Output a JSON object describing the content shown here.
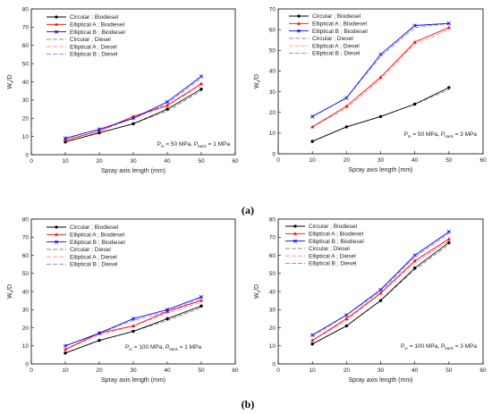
{
  "panel_labels": [
    "(a)",
    "(b)"
  ],
  "chart_data": [
    {
      "type": "line",
      "panel": "a",
      "title": "",
      "xlabel": "Spray axis length (mm)",
      "ylabel": "W",
      "ylabel_sub": "v",
      "ylabel_suffix": "/D",
      "xlim": [
        0,
        60
      ],
      "ylim": [
        0,
        80
      ],
      "xticks": [
        0,
        10,
        20,
        30,
        40,
        50,
        60
      ],
      "yticks": [
        0,
        10,
        20,
        30,
        40,
        50,
        60,
        70,
        80
      ],
      "grid": false,
      "legend_position": "top-left",
      "annotation": {
        "p1": "P",
        "s1": "in",
        "p2": " = 50 MPa, P",
        "s2": "back",
        "p3": " = 1 MPa"
      },
      "x": [
        10,
        20,
        30,
        40,
        50
      ],
      "series": [
        {
          "name": "Circular ; Biodiesel",
          "color": "#000000",
          "dashed": false,
          "marker": "circle",
          "values": [
            7,
            12,
            17,
            25,
            36
          ]
        },
        {
          "name": "Elliptical A ; Biodiesel",
          "color": "#ff0000",
          "dashed": false,
          "marker": "triangle",
          "values": [
            8,
            13,
            21,
            27,
            39
          ]
        },
        {
          "name": "Elliptical B ; Biodiesel",
          "color": "#0000ff",
          "dashed": false,
          "marker": "x",
          "values": [
            9,
            14,
            20,
            29,
            43
          ]
        },
        {
          "name": "Circular ; Diesel",
          "color": "#808080",
          "dashed": true,
          "marker": "none",
          "values": [
            7,
            12,
            17,
            24,
            35
          ]
        },
        {
          "name": "Elliptical A ; Diesel",
          "color": "#ff8c8c",
          "dashed": true,
          "marker": "none",
          "values": [
            8,
            13,
            20,
            27,
            38
          ]
        },
        {
          "name": "Elliptical B ; Diesel",
          "color": "#8c8cff",
          "dashed": true,
          "marker": "none",
          "values": [
            9,
            14,
            20,
            28,
            42
          ]
        }
      ]
    },
    {
      "type": "line",
      "panel": "a",
      "title": "",
      "xlabel": "Spray axis length (mm)",
      "ylabel": "W",
      "ylabel_sub": "v",
      "ylabel_suffix": "/D",
      "xlim": [
        0,
        60
      ],
      "ylim": [
        0,
        70
      ],
      "xticks": [
        0,
        10,
        20,
        30,
        40,
        50,
        60
      ],
      "yticks": [
        0,
        10,
        20,
        30,
        40,
        50,
        60,
        70
      ],
      "grid": false,
      "legend_position": "top-left",
      "annotation": {
        "p1": "P",
        "s1": "in",
        "p2": " = 50 MPa, P",
        "s2": "back",
        "p3": " = 3 MPa"
      },
      "x": [
        10,
        20,
        30,
        40,
        50
      ],
      "series": [
        {
          "name": "Circular ; Biodiesel",
          "color": "#000000",
          "dashed": false,
          "marker": "circle",
          "values": [
            6,
            13,
            18,
            24,
            32
          ]
        },
        {
          "name": "Elliptical A ; Biodiesel",
          "color": "#ff0000",
          "dashed": false,
          "marker": "triangle",
          "values": [
            13,
            23,
            37,
            54,
            61
          ]
        },
        {
          "name": "Elliptical B ; Biodiesel",
          "color": "#0000ff",
          "dashed": false,
          "marker": "x",
          "values": [
            18,
            27,
            48,
            62,
            63
          ]
        },
        {
          "name": "Circular ; Diesel",
          "color": "#808080",
          "dashed": true,
          "marker": "none",
          "values": [
            6,
            13,
            18,
            24,
            31
          ]
        },
        {
          "name": "Elliptical A ; Diesel",
          "color": "#ff8c8c",
          "dashed": true,
          "marker": "none",
          "values": [
            13,
            22,
            36,
            53,
            60
          ]
        },
        {
          "name": "Elliptical B ; Diesel",
          "color": "#8c8cff",
          "dashed": true,
          "marker": "none",
          "values": [
            18,
            27,
            47,
            61,
            63
          ]
        }
      ]
    },
    {
      "type": "line",
      "panel": "b",
      "title": "",
      "xlabel": "Spray axis length (mm)",
      "ylabel": "W",
      "ylabel_sub": "v",
      "ylabel_suffix": "/D",
      "xlim": [
        0,
        60
      ],
      "ylim": [
        0,
        80
      ],
      "xticks": [
        0,
        10,
        20,
        30,
        40,
        50,
        60
      ],
      "yticks": [
        0,
        10,
        20,
        30,
        40,
        50,
        60,
        70,
        80
      ],
      "grid": false,
      "legend_position": "top-left",
      "annotation": {
        "p1": "P",
        "s1": "in",
        "p2": " = 100 MPa, P",
        "s2": "back",
        "p3": " = 1 MPa"
      },
      "x": [
        10,
        20,
        30,
        40,
        50
      ],
      "series": [
        {
          "name": "Circular ; Biodiesel",
          "color": "#000000",
          "dashed": false,
          "marker": "circle",
          "values": [
            6,
            13,
            18,
            25,
            32
          ]
        },
        {
          "name": "Elliptical A ; Biodiesel",
          "color": "#ff0000",
          "dashed": false,
          "marker": "triangle",
          "values": [
            8,
            17,
            21,
            29,
            35
          ]
        },
        {
          "name": "Elliptical B ; Biodiesel",
          "color": "#0000ff",
          "dashed": false,
          "marker": "x",
          "values": [
            10,
            17,
            25,
            30,
            37
          ]
        },
        {
          "name": "Circular ; Diesel",
          "color": "#808080",
          "dashed": true,
          "marker": "none",
          "values": [
            6,
            13,
            18,
            24,
            31
          ]
        },
        {
          "name": "Elliptical A ; Diesel",
          "color": "#ff8c8c",
          "dashed": true,
          "marker": "none",
          "values": [
            8,
            16,
            21,
            28,
            34
          ]
        },
        {
          "name": "Elliptical B ; Diesel",
          "color": "#8c8cff",
          "dashed": true,
          "marker": "none",
          "values": [
            10,
            17,
            24,
            29,
            36
          ]
        }
      ]
    },
    {
      "type": "line",
      "panel": "b",
      "title": "",
      "xlabel": "Spray axis length (mm)",
      "ylabel": "W",
      "ylabel_sub": "v",
      "ylabel_suffix": "/D",
      "xlim": [
        0,
        60
      ],
      "ylim": [
        0,
        80
      ],
      "xticks": [
        0,
        10,
        20,
        30,
        40,
        50,
        60
      ],
      "yticks": [
        0,
        10,
        20,
        30,
        40,
        50,
        60,
        70,
        80
      ],
      "grid": false,
      "legend_position": "top-left",
      "annotation": {
        "p1": "P",
        "s1": "in",
        "p2": " = 100 MPa, P",
        "s2": "back",
        "p3": " = 3 MPa"
      },
      "x": [
        10,
        20,
        30,
        40,
        50
      ],
      "series": [
        {
          "name": "Circular ; Biodiesel",
          "color": "#000000",
          "dashed": false,
          "marker": "circle",
          "values": [
            11,
            21,
            35,
            53,
            67
          ]
        },
        {
          "name": "Elliptical A ; Biodiesel",
          "color": "#ff0000",
          "dashed": false,
          "marker": "triangle",
          "values": [
            13,
            25,
            39,
            57,
            69
          ]
        },
        {
          "name": "Elliptical B ; Biodiesel",
          "color": "#0000ff",
          "dashed": false,
          "marker": "x",
          "values": [
            16,
            27,
            41,
            60,
            73
          ]
        },
        {
          "name": "Circular ; Diesel",
          "color": "#808080",
          "dashed": true,
          "marker": "none",
          "values": [
            11,
            21,
            35,
            52,
            66
          ]
        },
        {
          "name": "Elliptical A ; Diesel",
          "color": "#ff8c8c",
          "dashed": true,
          "marker": "none",
          "values": [
            13,
            24,
            39,
            56,
            68
          ]
        },
        {
          "name": "Elliptical B ; Diesel",
          "color": "#8c8cff",
          "dashed": true,
          "marker": "none",
          "values": [
            15,
            27,
            40,
            59,
            72
          ]
        }
      ]
    }
  ]
}
